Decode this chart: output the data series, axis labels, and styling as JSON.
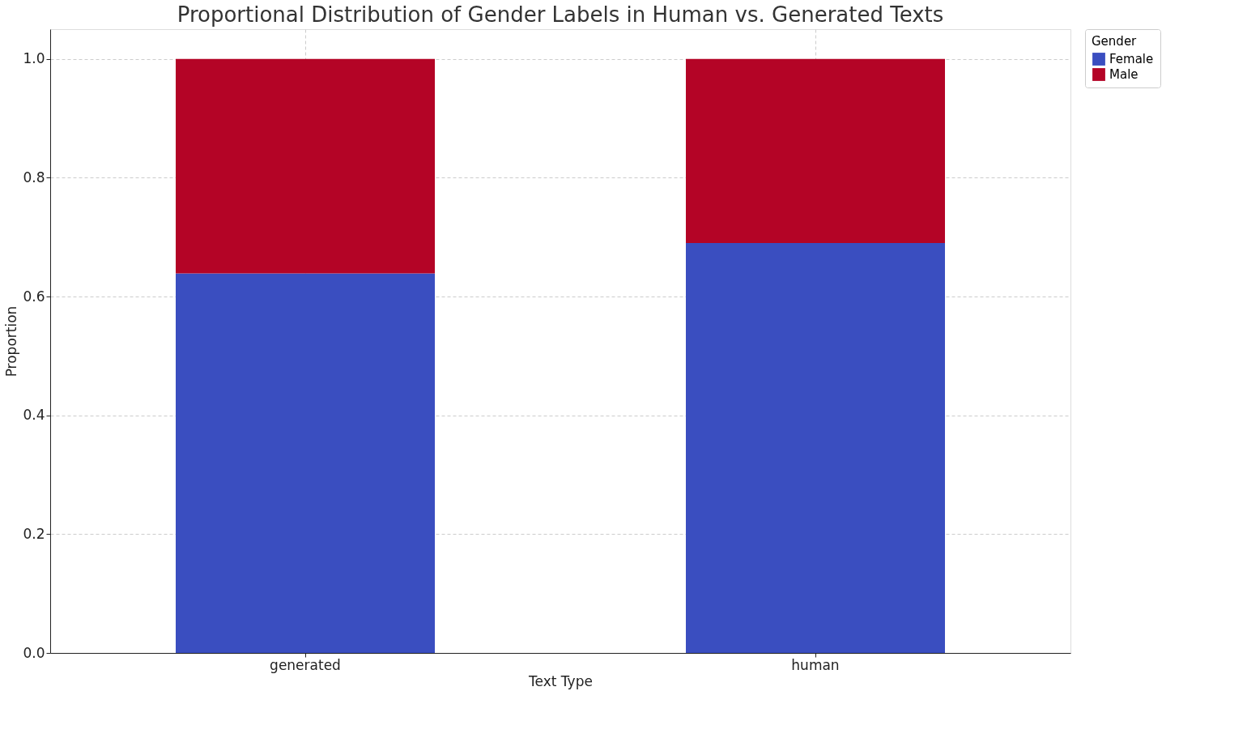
{
  "chart_data": {
    "type": "bar",
    "title": "Proportional Distribution of Gender Labels in Human vs. Generated Texts",
    "xlabel": "Text Type",
    "ylabel": "Proportion",
    "legend_title": "Gender",
    "categories": [
      "generated",
      "human"
    ],
    "stacked": true,
    "series": [
      {
        "name": "Female",
        "color": "#3a4ec0",
        "values": [
          0.639,
          0.69
        ]
      },
      {
        "name": "Male",
        "color": "#b40426",
        "values": [
          0.361,
          0.31
        ]
      }
    ],
    "ylim": [
      0,
      1.05
    ],
    "yticks": [
      {
        "value": 0,
        "label": "0.0"
      },
      {
        "value": 0.2,
        "label": "0.2"
      },
      {
        "value": 0.4,
        "label": "0.4"
      },
      {
        "value": 0.6,
        "label": "0.6"
      },
      {
        "value": 0.8,
        "label": "0.8"
      },
      {
        "value": 1,
        "label": "1.0"
      }
    ],
    "grid": true,
    "legend": "top right"
  }
}
